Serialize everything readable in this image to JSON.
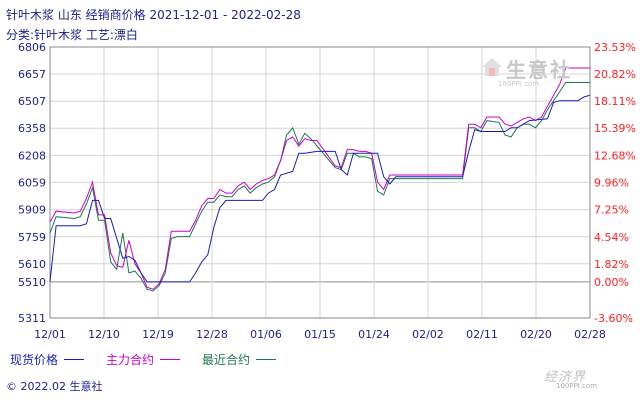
{
  "header": {
    "title": "针叶木浆  山东  经销商价格  2021-12-01 - 2022-02-28",
    "subtitle": "分类:针叶木浆  工艺:漂白"
  },
  "footer": {
    "text": "© 2022.02 生意社"
  },
  "watermark": {
    "brand": "生意社",
    "url": "100PPI.com"
  },
  "corner_logo": {
    "brand": "经济界",
    "url": "100PPI.com"
  },
  "colors": {
    "series1": "#1a1fb0",
    "series2": "#cc00cc",
    "series3": "#1e7a4a",
    "axis_text": "#1a1f8c",
    "right_axis_text": "#ff2020",
    "grid": "#d0d0d0"
  },
  "chart_data": {
    "type": "line",
    "x_ticks": [
      "12/01",
      "12/10",
      "12/19",
      "12/28",
      "01/06",
      "01/15",
      "01/24",
      "02/02",
      "02/11",
      "02/20",
      "02/28"
    ],
    "y_ticks_left": [
      "6806",
      "6657",
      "6507",
      "6358",
      "6208",
      "6059",
      "5909",
      "5759",
      "5610",
      "5510",
      "5311"
    ],
    "y_ticks_right": [
      "23.53%",
      "20.82%",
      "18.11%",
      "15.39%",
      "12.68%",
      "9.96%",
      "7.25%",
      "4.54%",
      "1.82%",
      "0.00%",
      "-3.60%"
    ],
    "ylim": [
      5311,
      6806
    ],
    "baseline": 5510,
    "series": [
      {
        "name": "现货价格",
        "points": [
          [
            "2021-12-01",
            5510
          ],
          [
            "2021-12-02",
            5820
          ],
          [
            "2021-12-06",
            5820
          ],
          [
            "2021-12-07",
            5830
          ],
          [
            "2021-12-08",
            5960
          ],
          [
            "2021-12-09",
            5960
          ],
          [
            "2021-12-10",
            5860
          ],
          [
            "2021-12-11",
            5860
          ],
          [
            "2021-12-13",
            5640
          ],
          [
            "2021-12-14",
            5650
          ],
          [
            "2021-12-15",
            5630
          ],
          [
            "2021-12-16",
            5560
          ],
          [
            "2021-12-17",
            5510
          ],
          [
            "2021-12-24",
            5510
          ],
          [
            "2021-12-25",
            5560
          ],
          [
            "2021-12-26",
            5620
          ],
          [
            "2021-12-27",
            5660
          ],
          [
            "2021-12-28",
            5810
          ],
          [
            "2021-12-29",
            5920
          ],
          [
            "2021-12-30",
            5960
          ],
          [
            "2022-01-05",
            5960
          ],
          [
            "2022-01-06",
            6000
          ],
          [
            "2022-01-07",
            6020
          ],
          [
            "2022-01-08",
            6100
          ],
          [
            "2022-01-10",
            6120
          ],
          [
            "2022-01-11",
            6220
          ],
          [
            "2022-01-12",
            6220
          ],
          [
            "2022-01-14",
            6230
          ],
          [
            "2022-01-17",
            6230
          ],
          [
            "2022-01-18",
            6130
          ],
          [
            "2022-01-19",
            6100
          ],
          [
            "2022-01-20",
            6220
          ],
          [
            "2022-01-24",
            6220
          ],
          [
            "2022-01-25",
            6090
          ],
          [
            "2022-01-26",
            6050
          ],
          [
            "2022-01-27",
            6090
          ],
          [
            "2022-02-07",
            6090
          ],
          [
            "2022-02-08",
            6230
          ],
          [
            "2022-02-09",
            6350
          ],
          [
            "2022-02-10",
            6340
          ],
          [
            "2022-02-14",
            6340
          ],
          [
            "2022-02-15",
            6360
          ],
          [
            "2022-02-16",
            6360
          ],
          [
            "2022-02-17",
            6380
          ],
          [
            "2022-02-18",
            6400
          ],
          [
            "2022-02-21",
            6410
          ],
          [
            "2022-02-22",
            6500
          ],
          [
            "2022-02-23",
            6510
          ],
          [
            "2022-02-26",
            6510
          ],
          [
            "2022-02-27",
            6530
          ],
          [
            "2022-02-28",
            6540
          ]
        ]
      },
      {
        "name": "主力合约",
        "points": [
          [
            "2021-12-01",
            5840
          ],
          [
            "2021-12-02",
            5900
          ],
          [
            "2021-12-05",
            5890
          ],
          [
            "2021-12-06",
            5900
          ],
          [
            "2021-12-07",
            5970
          ],
          [
            "2021-12-08",
            6060
          ],
          [
            "2021-12-09",
            5880
          ],
          [
            "2021-12-10",
            5880
          ],
          [
            "2021-12-11",
            5670
          ],
          [
            "2021-12-12",
            5600
          ],
          [
            "2021-12-13",
            5590
          ],
          [
            "2021-12-14",
            5740
          ],
          [
            "2021-12-15",
            5610
          ],
          [
            "2021-12-16",
            5560
          ],
          [
            "2021-12-17",
            5480
          ],
          [
            "2021-12-18",
            5470
          ],
          [
            "2021-12-19",
            5500
          ],
          [
            "2021-12-20",
            5580
          ],
          [
            "2021-12-21",
            5790
          ],
          [
            "2021-12-22",
            5790
          ],
          [
            "2021-12-24",
            5790
          ],
          [
            "2021-12-25",
            5850
          ],
          [
            "2021-12-26",
            5930
          ],
          [
            "2021-12-27",
            5970
          ],
          [
            "2021-12-28",
            5970
          ],
          [
            "2021-12-29",
            6020
          ],
          [
            "2021-12-30",
            6000
          ],
          [
            "2021-12-31",
            6000
          ],
          [
            "2022-01-01",
            6040
          ],
          [
            "2022-01-02",
            6060
          ],
          [
            "2022-01-03",
            6020
          ],
          [
            "2022-01-04",
            6050
          ],
          [
            "2022-01-05",
            6070
          ],
          [
            "2022-01-06",
            6080
          ],
          [
            "2022-01-07",
            6100
          ],
          [
            "2022-01-08",
            6180
          ],
          [
            "2022-01-09",
            6290
          ],
          [
            "2022-01-10",
            6310
          ],
          [
            "2022-01-11",
            6260
          ],
          [
            "2022-01-12",
            6300
          ],
          [
            "2022-01-13",
            6290
          ],
          [
            "2022-01-14",
            6290
          ],
          [
            "2022-01-17",
            6150
          ],
          [
            "2022-01-18",
            6140
          ],
          [
            "2022-01-19",
            6240
          ],
          [
            "2022-01-20",
            6240
          ],
          [
            "2022-01-21",
            6230
          ],
          [
            "2022-01-22",
            6230
          ],
          [
            "2022-01-23",
            6220
          ],
          [
            "2022-01-24",
            6060
          ],
          [
            "2022-01-25",
            6020
          ],
          [
            "2022-01-26",
            6100
          ],
          [
            "2022-01-27",
            6100
          ],
          [
            "2022-02-07",
            6100
          ],
          [
            "2022-02-08",
            6380
          ],
          [
            "2022-02-09",
            6380
          ],
          [
            "2022-02-10",
            6360
          ],
          [
            "2022-02-11",
            6420
          ],
          [
            "2022-02-13",
            6420
          ],
          [
            "2022-02-14",
            6380
          ],
          [
            "2022-02-15",
            6370
          ],
          [
            "2022-02-16",
            6390
          ],
          [
            "2022-02-17",
            6410
          ],
          [
            "2022-02-18",
            6420
          ],
          [
            "2022-02-19",
            6400
          ],
          [
            "2022-02-20",
            6420
          ],
          [
            "2022-02-21",
            6480
          ],
          [
            "2022-02-22",
            6540
          ],
          [
            "2022-02-23",
            6600
          ],
          [
            "2022-02-24",
            6690
          ],
          [
            "2022-02-25",
            6690
          ],
          [
            "2022-02-28",
            6690
          ]
        ]
      },
      {
        "name": "最近合约",
        "points": [
          [
            "2021-12-01",
            5780
          ],
          [
            "2021-12-02",
            5870
          ],
          [
            "2021-12-05",
            5860
          ],
          [
            "2021-12-06",
            5870
          ],
          [
            "2021-12-07",
            5940
          ],
          [
            "2021-12-08",
            6030
          ],
          [
            "2021-12-09",
            5850
          ],
          [
            "2021-12-10",
            5850
          ],
          [
            "2021-12-11",
            5620
          ],
          [
            "2021-12-12",
            5580
          ],
          [
            "2021-12-13",
            5780
          ],
          [
            "2021-12-14",
            5560
          ],
          [
            "2021-12-15",
            5570
          ],
          [
            "2021-12-16",
            5530
          ],
          [
            "2021-12-17",
            5470
          ],
          [
            "2021-12-18",
            5460
          ],
          [
            "2021-12-19",
            5490
          ],
          [
            "2021-12-20",
            5560
          ],
          [
            "2021-12-21",
            5750
          ],
          [
            "2021-12-22",
            5760
          ],
          [
            "2021-12-24",
            5760
          ],
          [
            "2021-12-25",
            5830
          ],
          [
            "2021-12-26",
            5900
          ],
          [
            "2021-12-27",
            5950
          ],
          [
            "2021-12-28",
            5950
          ],
          [
            "2021-12-29",
            5990
          ],
          [
            "2021-12-30",
            5980
          ],
          [
            "2021-12-31",
            5980
          ],
          [
            "2022-01-01",
            6020
          ],
          [
            "2022-01-02",
            6040
          ],
          [
            "2022-01-03",
            6000
          ],
          [
            "2022-01-04",
            6030
          ],
          [
            "2022-01-05",
            6050
          ],
          [
            "2022-01-06",
            6060
          ],
          [
            "2022-01-07",
            6090
          ],
          [
            "2022-01-08",
            6180
          ],
          [
            "2022-01-09",
            6320
          ],
          [
            "2022-01-10",
            6360
          ],
          [
            "2022-01-11",
            6270
          ],
          [
            "2022-01-12",
            6330
          ],
          [
            "2022-01-13",
            6300
          ],
          [
            "2022-01-14",
            6260
          ],
          [
            "2022-01-17",
            6140
          ],
          [
            "2022-01-18",
            6130
          ],
          [
            "2022-01-19",
            6220
          ],
          [
            "2022-01-20",
            6220
          ],
          [
            "2022-01-21",
            6200
          ],
          [
            "2022-01-22",
            6200
          ],
          [
            "2022-01-23",
            6190
          ],
          [
            "2022-01-24",
            6010
          ],
          [
            "2022-01-25",
            5990
          ],
          [
            "2022-01-26",
            6080
          ],
          [
            "2022-01-27",
            6080
          ],
          [
            "2022-02-07",
            6080
          ],
          [
            "2022-02-08",
            6360
          ],
          [
            "2022-02-09",
            6360
          ],
          [
            "2022-02-10",
            6340
          ],
          [
            "2022-02-11",
            6400
          ],
          [
            "2022-02-13",
            6390
          ],
          [
            "2022-02-14",
            6320
          ],
          [
            "2022-02-15",
            6310
          ],
          [
            "2022-02-16",
            6360
          ],
          [
            "2022-02-17",
            6380
          ],
          [
            "2022-02-18",
            6380
          ],
          [
            "2022-02-19",
            6360
          ],
          [
            "2022-02-20",
            6400
          ],
          [
            "2022-02-21",
            6460
          ],
          [
            "2022-02-22",
            6510
          ],
          [
            "2022-02-23",
            6560
          ],
          [
            "2022-02-24",
            6610
          ],
          [
            "2022-02-25",
            6610
          ],
          [
            "2022-02-28",
            6610
          ]
        ]
      }
    ],
    "grid": true,
    "legend": "bottom-left"
  }
}
